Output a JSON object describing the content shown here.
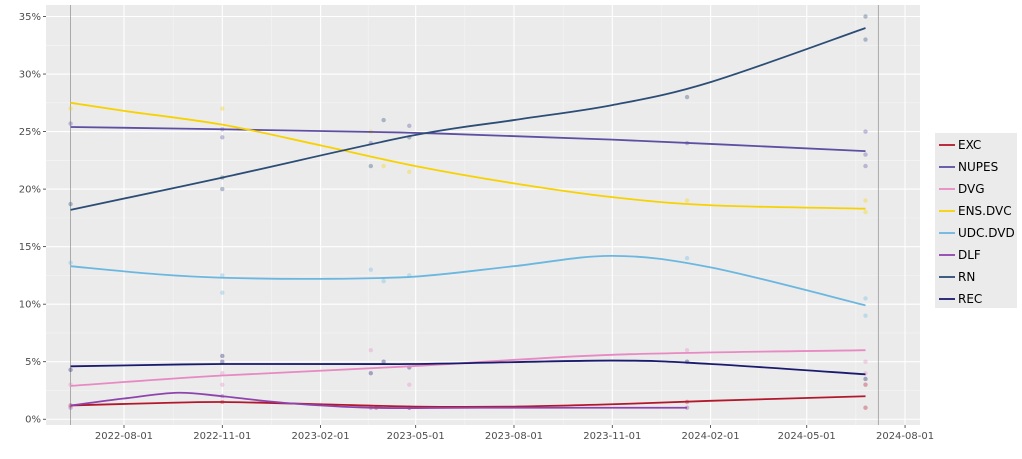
{
  "chart_data": {
    "type": "line",
    "title": "",
    "xlabel": "",
    "ylabel": "",
    "ylim": [
      -0.5,
      36
    ],
    "xlim": [
      "2022-05-20",
      "2024-08-15"
    ],
    "y_ticks": [
      0,
      5,
      10,
      15,
      20,
      25,
      30,
      35
    ],
    "y_tick_labels": [
      "0%",
      "5%",
      "10%",
      "15%",
      "20%",
      "25%",
      "30%",
      "35%"
    ],
    "x_ticks": [
      "2022-08-01",
      "2022-11-01",
      "2023-02-01",
      "2023-05-01",
      "2023-08-01",
      "2023-11-01",
      "2024-02-01",
      "2024-05-01",
      "2024-08-01"
    ],
    "x_tick_labels": [
      "2022-08-01",
      "2022-11-01",
      "2023-02-01",
      "2023-05-01",
      "2023-08-01",
      "2023-11-01",
      "2024-02-01",
      "2024-05-01",
      "2024-08-01"
    ],
    "reference_lines_x": [
      "2022-06-12",
      "2024-07-07"
    ],
    "grid": true,
    "legend_position": "right",
    "series": [
      {
        "name": "EXC",
        "color": "#b2182b",
        "curve": [
          [
            "2022-06-12",
            1.2
          ],
          [
            "2022-09-01",
            1.4
          ],
          [
            "2022-11-01",
            1.5
          ],
          [
            "2023-02-01",
            1.3
          ],
          [
            "2023-05-01",
            1.1
          ],
          [
            "2023-08-01",
            1.1
          ],
          [
            "2023-11-01",
            1.3
          ],
          [
            "2024-02-01",
            1.6
          ],
          [
            "2024-06-25",
            2.0
          ]
        ],
        "points": [
          [
            "2022-06-12",
            1.2
          ],
          [
            "2022-11-01",
            1.5
          ],
          [
            "2023-03-25",
            1.0
          ],
          [
            "2023-04-25",
            1.0
          ],
          [
            "2024-01-10",
            1.5
          ],
          [
            "2024-06-25",
            1.0
          ],
          [
            "2024-06-25",
            3.0
          ]
        ]
      },
      {
        "name": "NUPES",
        "color": "#5e4fa2",
        "curve": [
          [
            "2022-06-12",
            25.4
          ],
          [
            "2022-11-01",
            25.2
          ],
          [
            "2023-04-25",
            24.9
          ],
          [
            "2023-11-01",
            24.3
          ],
          [
            "2024-06-25",
            23.3
          ]
        ],
        "points": [
          [
            "2022-06-12",
            25.7
          ],
          [
            "2022-11-01",
            25.2
          ],
          [
            "2022-11-01",
            24.5
          ],
          [
            "2023-03-20",
            24.0
          ],
          [
            "2023-04-25",
            25.5
          ],
          [
            "2024-01-10",
            24.0
          ],
          [
            "2024-06-25",
            25.0
          ],
          [
            "2024-06-25",
            23.0
          ],
          [
            "2024-06-25",
            22.0
          ]
        ]
      },
      {
        "name": "DVG",
        "color": "#e78ac3",
        "curve": [
          [
            "2022-06-12",
            2.9
          ],
          [
            "2022-11-01",
            3.8
          ],
          [
            "2023-04-25",
            4.6
          ],
          [
            "2023-11-01",
            5.6
          ],
          [
            "2024-06-25",
            6.0
          ]
        ],
        "points": [
          [
            "2022-06-12",
            3.0
          ],
          [
            "2022-11-01",
            3.0
          ],
          [
            "2022-11-01",
            4.0
          ],
          [
            "2023-03-20",
            6.0
          ],
          [
            "2023-04-25",
            3.0
          ],
          [
            "2024-01-10",
            6.0
          ],
          [
            "2024-06-25",
            5.0
          ],
          [
            "2024-06-25",
            4.0
          ]
        ]
      },
      {
        "name": "ENS.DVC",
        "color": "#f7d200",
        "curve": [
          [
            "2022-06-12",
            27.5
          ],
          [
            "2022-08-01",
            26.8
          ],
          [
            "2022-11-01",
            25.6
          ],
          [
            "2023-02-01",
            23.8
          ],
          [
            "2023-05-01",
            22.0
          ],
          [
            "2023-08-01",
            20.5
          ],
          [
            "2023-11-01",
            19.3
          ],
          [
            "2024-02-01",
            18.6
          ],
          [
            "2024-06-25",
            18.3
          ]
        ],
        "points": [
          [
            "2022-06-12",
            27.0
          ],
          [
            "2022-11-01",
            27.0
          ],
          [
            "2023-03-20",
            25.0
          ],
          [
            "2023-04-01",
            22.0
          ],
          [
            "2023-04-25",
            21.5
          ],
          [
            "2024-01-10",
            19.0
          ],
          [
            "2024-06-25",
            19.0
          ],
          [
            "2024-06-25",
            18.0
          ]
        ]
      },
      {
        "name": "UDC.DVD",
        "color": "#6bb7e0",
        "curve": [
          [
            "2022-06-12",
            13.3
          ],
          [
            "2022-09-01",
            12.6
          ],
          [
            "2022-11-01",
            12.3
          ],
          [
            "2023-02-01",
            12.2
          ],
          [
            "2023-05-01",
            12.4
          ],
          [
            "2023-08-01",
            13.3
          ],
          [
            "2023-11-01",
            14.2
          ],
          [
            "2024-02-01",
            13.2
          ],
          [
            "2024-06-25",
            9.9
          ]
        ],
        "points": [
          [
            "2022-06-12",
            13.6
          ],
          [
            "2022-11-01",
            12.5
          ],
          [
            "2022-11-01",
            11.0
          ],
          [
            "2023-03-20",
            13.0
          ],
          [
            "2023-04-01",
            12.0
          ],
          [
            "2023-04-25",
            12.5
          ],
          [
            "2024-01-10",
            14.0
          ],
          [
            "2024-06-25",
            10.5
          ],
          [
            "2024-06-25",
            9.0
          ]
        ]
      },
      {
        "name": "DLF",
        "color": "#8e44ad",
        "curve": [
          [
            "2022-06-12",
            1.2
          ],
          [
            "2022-08-01",
            1.8
          ],
          [
            "2022-09-20",
            2.3
          ],
          [
            "2022-11-01",
            2.0
          ],
          [
            "2023-01-01",
            1.4
          ],
          [
            "2023-03-20",
            1.0
          ],
          [
            "2023-07-01",
            1.0
          ],
          [
            "2024-01-10",
            1.0
          ]
        ],
        "points": [
          [
            "2022-06-12",
            1.0
          ],
          [
            "2022-11-01",
            2.0
          ],
          [
            "2023-03-20",
            1.0
          ],
          [
            "2023-04-25",
            1.0
          ],
          [
            "2024-01-10",
            1.0
          ]
        ]
      },
      {
        "name": "RN",
        "color": "#2c4d75",
        "curve": [
          [
            "2022-06-12",
            18.2
          ],
          [
            "2022-11-01",
            21.0
          ],
          [
            "2023-04-25",
            24.6
          ],
          [
            "2023-08-01",
            26.0
          ],
          [
            "2023-11-01",
            27.3
          ],
          [
            "2024-02-01",
            29.3
          ],
          [
            "2024-06-25",
            34.0
          ]
        ],
        "points": [
          [
            "2022-06-12",
            18.7
          ],
          [
            "2022-11-01",
            21.0
          ],
          [
            "2022-11-01",
            20.0
          ],
          [
            "2023-03-20",
            22.0
          ],
          [
            "2023-04-01",
            26.0
          ],
          [
            "2023-04-25",
            24.5
          ],
          [
            "2024-01-10",
            28.0
          ],
          [
            "2024-06-25",
            35.0
          ],
          [
            "2024-06-25",
            33.0
          ]
        ]
      },
      {
        "name": "REC",
        "color": "#1a1a6e",
        "curve": [
          [
            "2022-06-12",
            4.6
          ],
          [
            "2022-11-01",
            4.8
          ],
          [
            "2023-04-25",
            4.8
          ],
          [
            "2023-11-01",
            5.1
          ],
          [
            "2024-02-01",
            4.8
          ],
          [
            "2024-06-25",
            3.9
          ]
        ],
        "points": [
          [
            "2022-06-12",
            4.3
          ],
          [
            "2022-11-01",
            5.5
          ],
          [
            "2022-11-01",
            5.0
          ],
          [
            "2023-03-20",
            4.0
          ],
          [
            "2023-04-01",
            5.0
          ],
          [
            "2023-04-25",
            4.5
          ],
          [
            "2024-01-10",
            5.0
          ],
          [
            "2024-06-25",
            3.5
          ]
        ]
      }
    ]
  }
}
